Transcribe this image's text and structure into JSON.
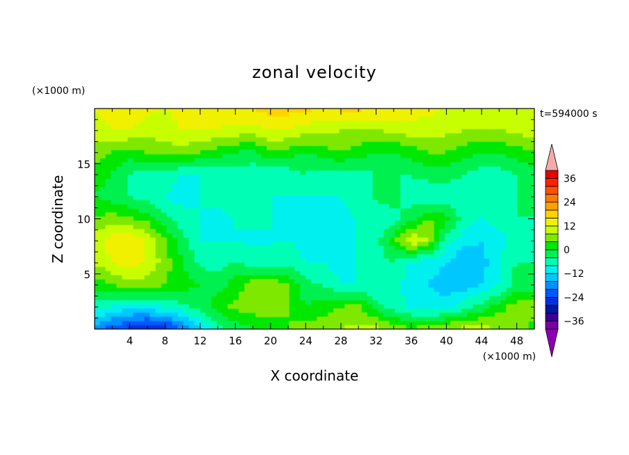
{
  "chart_data": {
    "type": "heatmap",
    "title": "zonal velocity",
    "xlabel": "X coordinate",
    "ylabel": "Z coordinate",
    "x_unit": "(×1000 m)",
    "y_unit": "(×1000 m)",
    "time_label": "t=594000 s",
    "xlim": [
      0,
      50
    ],
    "ylim": [
      0,
      20
    ],
    "x_ticks": [
      4,
      8,
      12,
      16,
      20,
      24,
      28,
      32,
      36,
      40,
      44,
      48
    ],
    "y_ticks": [
      5,
      10,
      15
    ],
    "x_tick_labels": [
      "4",
      "8",
      "12",
      "16",
      "20",
      "24",
      "28",
      "32",
      "36",
      "40",
      "44",
      "48"
    ],
    "y_tick_labels": [
      "5",
      "10",
      "15"
    ],
    "colorbar": {
      "levels": [
        -40,
        -36,
        -32,
        -28,
        -24,
        -20,
        -16,
        -12,
        -8,
        -4,
        0,
        4,
        8,
        12,
        16,
        20,
        24,
        28,
        32,
        36,
        40
      ],
      "tick_values": [
        -36,
        -24,
        -12,
        0,
        12,
        24,
        36
      ],
      "tick_labels": [
        "−36",
        "−24",
        "−12",
        "0",
        "12",
        "24",
        "36"
      ],
      "colors": [
        "#7a00a0",
        "#3a0090",
        "#0018a0",
        "#0030e0",
        "#0058ff",
        "#0090ff",
        "#00c8ff",
        "#00f0f0",
        "#00ffb4",
        "#00f050",
        "#00e800",
        "#7ee800",
        "#c8ff00",
        "#f0f000",
        "#ffd200",
        "#ffa000",
        "#ff7800",
        "#ff5000",
        "#ff2000",
        "#e80000"
      ],
      "under_color": "#8c00b4",
      "over_color": "#f4aaaa"
    },
    "z_grid": {
      "x_range": [
        0,
        50
      ],
      "y_range": [
        0,
        20
      ],
      "nx": 26,
      "ny": 11,
      "values": [
        [
          -18,
          -22,
          -26,
          -28,
          -26,
          -20,
          -12,
          -6,
          -2,
          0,
          2,
          4,
          6,
          6,
          8,
          9,
          9,
          6,
          4,
          6,
          8,
          9,
          9,
          8,
          6,
          2
        ],
        [
          -6,
          -8,
          -10,
          -10,
          -8,
          -5,
          -2,
          2,
          5,
          6,
          6,
          4,
          0,
          2,
          4,
          5,
          -2,
          -6,
          -9,
          -11,
          -10,
          -6,
          -2,
          2,
          6,
          6
        ],
        [
          2,
          4,
          6,
          6,
          4,
          2,
          0,
          -2,
          2,
          6,
          8,
          4,
          -3,
          -4,
          -8,
          -8,
          -8,
          -6,
          -10,
          -12,
          -14,
          -14,
          -12,
          -8,
          -2,
          -2
        ],
        [
          8,
          12,
          14,
          12,
          6,
          0,
          -5,
          -6,
          -4,
          -6,
          -8,
          -6,
          -8,
          -8,
          -10,
          -8,
          -6,
          -4,
          -9,
          -10,
          -12,
          -16,
          -14,
          -8,
          -4,
          -4
        ],
        [
          10,
          14,
          16,
          12,
          4,
          -2,
          -8,
          -8,
          -8,
          -9,
          -8,
          -8,
          -9,
          -9,
          -10,
          -8,
          -6,
          2,
          12,
          8,
          -6,
          -10,
          -12,
          -10,
          -6,
          -6
        ],
        [
          4,
          6,
          4,
          2,
          -3,
          -6,
          -8,
          -9,
          -8,
          -7,
          -8,
          -9,
          -8,
          -9,
          -9,
          -8,
          -7,
          -6,
          -2,
          4,
          2,
          -6,
          -8,
          -6,
          -4,
          -4
        ],
        [
          0,
          -2,
          -4,
          -6,
          -8,
          -10,
          -8,
          -7,
          -6,
          -6,
          -8,
          -8,
          -8,
          -8,
          -8,
          -6,
          -3,
          -2,
          -6,
          -8,
          -6,
          -8,
          -8,
          -6,
          -4,
          -4
        ],
        [
          2,
          0,
          -4,
          -6,
          -6,
          -8,
          -8,
          -6,
          -6,
          -6,
          -8,
          -6,
          -4,
          -6,
          -6,
          -5,
          -4,
          -4,
          -4,
          -2,
          -2,
          -4,
          -6,
          -6,
          -4,
          -2
        ],
        [
          6,
          4,
          2,
          4,
          6,
          6,
          4,
          2,
          0,
          -2,
          4,
          2,
          0,
          2,
          4,
          2,
          0,
          0,
          2,
          4,
          4,
          2,
          0,
          0,
          2,
          4
        ],
        [
          10,
          12,
          12,
          10,
          10,
          12,
          12,
          12,
          11,
          10,
          12,
          12,
          10,
          9,
          8,
          8,
          8,
          9,
          10,
          10,
          9,
          8,
          8,
          8,
          9,
          10
        ],
        [
          12,
          14,
          14,
          13,
          12,
          14,
          15,
          14,
          14,
          16,
          18,
          18,
          17,
          16,
          17,
          17,
          16,
          15,
          14,
          13,
          12,
          11,
          11,
          10,
          10,
          11
        ]
      ]
    }
  }
}
